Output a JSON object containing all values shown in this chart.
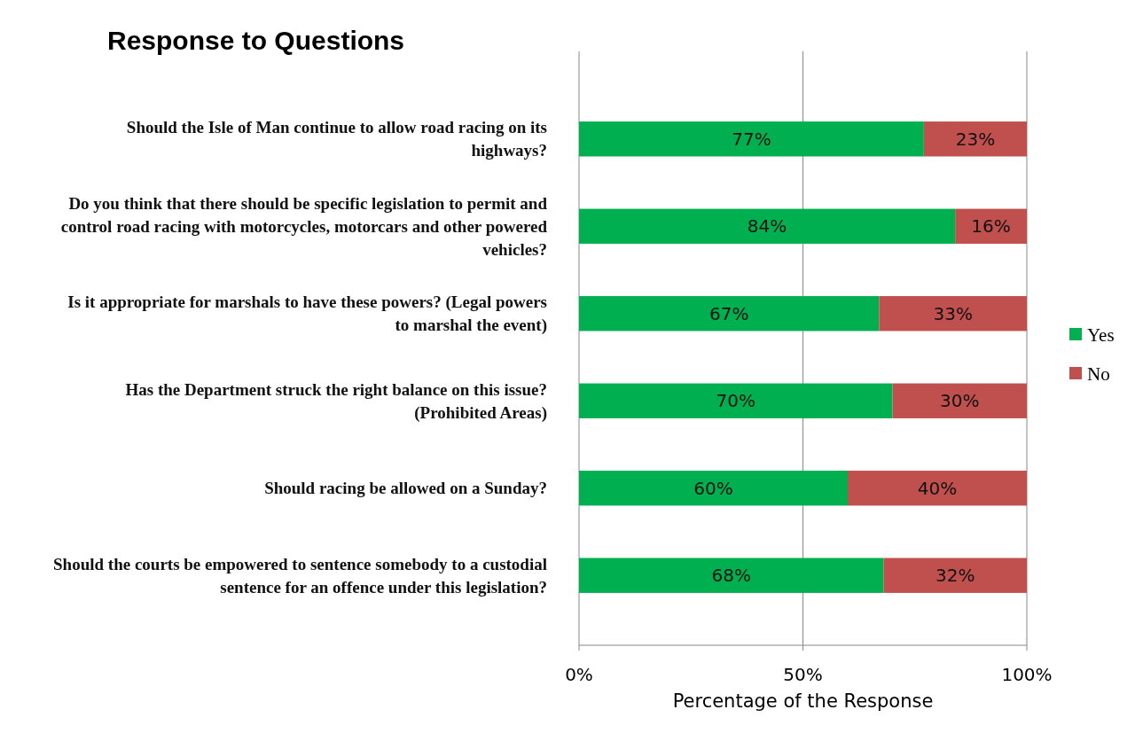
{
  "chart_data": {
    "type": "bar",
    "orientation": "horizontal",
    "stacked": true,
    "title": "Response to Questions",
    "xlabel": "Percentage of the Response",
    "categories": [
      "Should the Isle of Man continue to allow road racing on its highways?",
      "Do you think that there should be specific legislation to permit and control road racing with motorcycles, motorcars and other powered vehicles?",
      "Is it appropriate for marshals to have these powers? (Legal powers to marshal the event)",
      "Has the Department struck the right balance on this issue? (Prohibited Areas)",
      "Should racing be allowed on a Sunday?",
      "Should the courts be empowered to sentence somebody to a custodial sentence for an offence under this legislation?"
    ],
    "series": [
      {
        "name": "Yes",
        "color": "#00b050",
        "values": [
          77,
          84,
          67,
          70,
          60,
          68
        ],
        "value_labels": [
          "77%",
          "84%",
          "67%",
          "70%",
          "60%",
          "68%"
        ]
      },
      {
        "name": "No",
        "color": "#c0504d",
        "values": [
          23,
          16,
          33,
          30,
          40,
          32
        ],
        "value_labels": [
          "23%",
          "16%",
          "33%",
          "30%",
          "40%",
          "32%"
        ]
      }
    ],
    "xlim": [
      0,
      100
    ],
    "xticks": [
      {
        "value": 0,
        "label": "0%"
      },
      {
        "value": 50,
        "label": "50%"
      },
      {
        "value": 100,
        "label": "100%"
      }
    ],
    "grid": "x",
    "legend": "right"
  }
}
